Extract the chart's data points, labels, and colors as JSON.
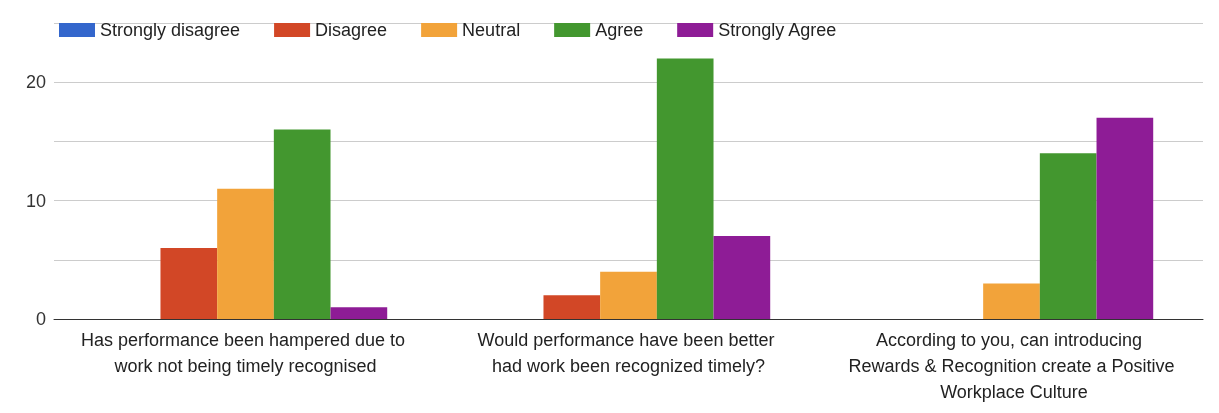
{
  "chart_data": {
    "type": "bar",
    "categories": [
      "Has performance been hampered due to work not being timely recognised",
      "Would performance have been better had work been recognized timely?",
      "According to you, can introducing Rewards & Recognition create a Positive Workplace Culture"
    ],
    "series": [
      {
        "name": "Strongly disagree",
        "color": "#3366cc",
        "values": [
          0,
          0,
          0
        ]
      },
      {
        "name": "Disagree",
        "color": "#d24726",
        "values": [
          6,
          2,
          0
        ]
      },
      {
        "name": "Neutral",
        "color": "#f2a33a",
        "values": [
          11,
          4,
          3
        ]
      },
      {
        "name": "Agree",
        "color": "#43972f",
        "values": [
          16,
          22,
          14
        ]
      },
      {
        "name": "Strongly Agree",
        "color": "#8e1c96",
        "values": [
          1,
          7,
          17
        ]
      }
    ],
    "ylim": [
      0,
      25
    ],
    "yticks": [
      0,
      {
        "value": 5,
        "label": null
      },
      10,
      {
        "value": 15,
        "label": null
      },
      20,
      {
        "value": 25,
        "label": null
      }
    ],
    "grid": "y",
    "legend": "top left"
  }
}
